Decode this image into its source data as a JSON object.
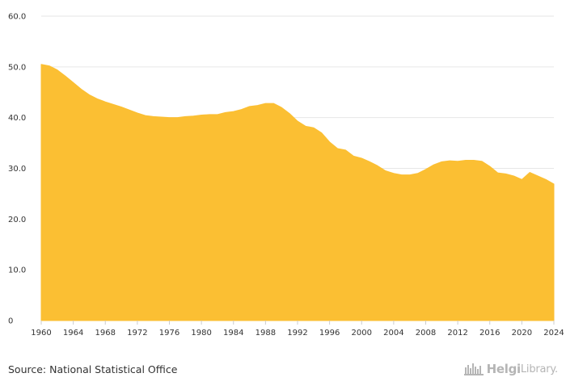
{
  "chart_data": {
    "type": "area",
    "color": "#fbbf33",
    "x": [
      1960,
      1961,
      1962,
      1963,
      1964,
      1965,
      1966,
      1967,
      1968,
      1969,
      1970,
      1971,
      1972,
      1973,
      1974,
      1975,
      1976,
      1977,
      1978,
      1979,
      1980,
      1981,
      1982,
      1983,
      1984,
      1985,
      1986,
      1987,
      1988,
      1989,
      1990,
      1991,
      1992,
      1993,
      1994,
      1995,
      1996,
      1997,
      1998,
      1999,
      2000,
      2001,
      2002,
      2003,
      2004,
      2005,
      2006,
      2007,
      2008,
      2009,
      2010,
      2011,
      2012,
      2013,
      2014,
      2015,
      2016,
      2017,
      2018,
      2019,
      2020,
      2021,
      2022,
      2023,
      2024
    ],
    "values": [
      50.5,
      50.2,
      49.4,
      48.2,
      46.9,
      45.6,
      44.5,
      43.7,
      43.1,
      42.6,
      42.1,
      41.5,
      40.9,
      40.4,
      40.2,
      40.1,
      40.0,
      40.0,
      40.2,
      40.3,
      40.5,
      40.6,
      40.6,
      41.0,
      41.2,
      41.6,
      42.2,
      42.4,
      42.8,
      42.8,
      42.0,
      40.8,
      39.3,
      38.3,
      38.0,
      37.0,
      35.2,
      33.9,
      33.6,
      32.4,
      32.0,
      31.3,
      30.5,
      29.5,
      29.0,
      28.7,
      28.7,
      29.0,
      29.8,
      30.7,
      31.3,
      31.5,
      31.4,
      31.6,
      31.6,
      31.4,
      30.4,
      29.1,
      28.9,
      28.5,
      27.8,
      29.2,
      28.5,
      27.8,
      26.9
    ],
    "ylim": [
      0,
      60
    ],
    "y_ticks": [
      0,
      10,
      20,
      30,
      40,
      50,
      60
    ],
    "y_tick_labels": [
      "0",
      "10.0",
      "20.0",
      "30.0",
      "40.0",
      "50.0",
      "60.0"
    ],
    "x_ticks": [
      1960,
      1964,
      1968,
      1972,
      1976,
      1980,
      1984,
      1988,
      1992,
      1996,
      2000,
      2004,
      2008,
      2012,
      2016,
      2020,
      2024
    ],
    "x_tick_labels": [
      "1960",
      "1964",
      "1968",
      "1972",
      "1976",
      "1980",
      "1984",
      "1988",
      "1992",
      "1996",
      "2000",
      "2004",
      "2008",
      "2012",
      "2016",
      "2020",
      "2024"
    ],
    "grid": true,
    "title": "",
    "xlabel": "",
    "ylabel": ""
  },
  "footer": {
    "source": "Source: National Statistical Office",
    "brand_name": "Helgi",
    "brand_suffix": "Library."
  }
}
